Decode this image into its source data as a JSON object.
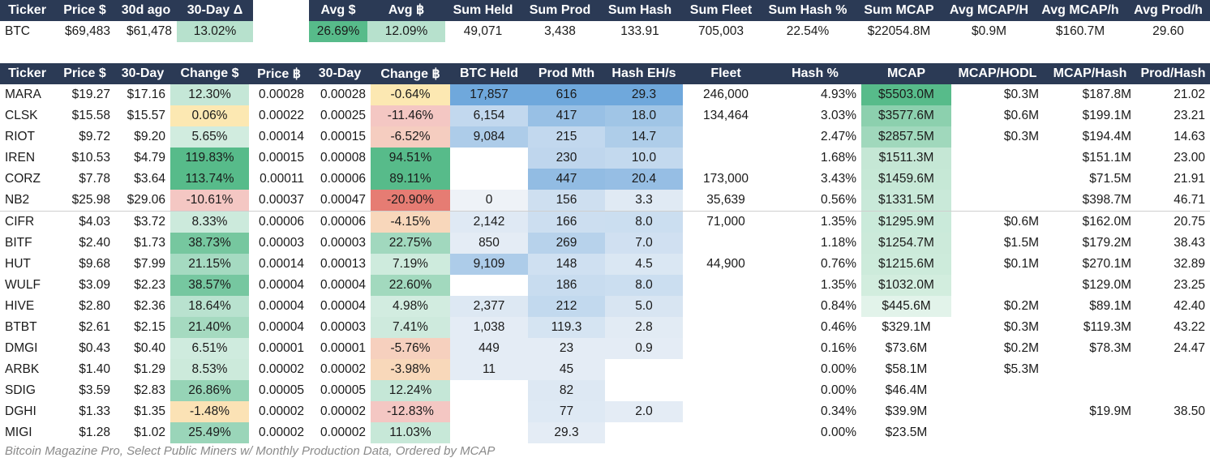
{
  "top": {
    "headers": [
      "Ticker",
      "Price $",
      "30d ago",
      "30-Day Δ"
    ],
    "values": [
      "BTC",
      "$69,483",
      "$61,478",
      "13.02%"
    ],
    "summary_headers": [
      "Avg $",
      "Avg ฿",
      "Sum Held",
      "Sum Prod",
      "Sum Hash",
      "Sum Fleet",
      "Sum Hash %",
      "Sum MCAP",
      "Avg MCAP/H",
      "Avg MCAP/h",
      "Avg Prod/h"
    ],
    "summary_values": [
      "26.69%",
      "12.09%",
      "49,071",
      "3,438",
      "133.91",
      "705,003",
      "22.54%",
      "$22054.8M",
      "$0.9M",
      "$160.7M",
      "29.60"
    ]
  },
  "table": {
    "headers": [
      "Ticker",
      "Price $",
      "30-Day",
      "Change $",
      "Price ฿",
      "30-Day",
      "Change ฿",
      "BTC Held",
      "Prod Mth",
      "Hash EH/s",
      "Fleet",
      "Hash %",
      "MCAP",
      "MCAP/HODL",
      "MCAP/Hash",
      "Prod/Hash"
    ],
    "rows": [
      [
        "MARA",
        "$19.27",
        "$17.16",
        "12.30%",
        "0.00028",
        "0.00028",
        "-0.64%",
        "17,857",
        "616",
        "29.3",
        "246,000",
        "4.93%",
        "$5503.0M",
        "$0.3M",
        "$187.8M",
        "21.02"
      ],
      [
        "CLSK",
        "$15.58",
        "$15.57",
        "0.06%",
        "0.00022",
        "0.00025",
        "-11.46%",
        "6,154",
        "417",
        "18.0",
        "134,464",
        "3.03%",
        "$3577.6M",
        "$0.6M",
        "$199.1M",
        "23.21"
      ],
      [
        "RIOT",
        "$9.72",
        "$9.20",
        "5.65%",
        "0.00014",
        "0.00015",
        "-6.52%",
        "9,084",
        "215",
        "14.7",
        "",
        "2.47%",
        "$2857.5M",
        "$0.3M",
        "$194.4M",
        "14.63"
      ],
      [
        "IREN",
        "$10.53",
        "$4.79",
        "119.83%",
        "0.00015",
        "0.00008",
        "94.51%",
        "",
        "230",
        "10.0",
        "",
        "1.68%",
        "$1511.3M",
        "",
        "$151.1M",
        "23.00"
      ],
      [
        "CORZ",
        "$7.78",
        "$3.64",
        "113.74%",
        "0.00011",
        "0.00006",
        "89.11%",
        "",
        "447",
        "20.4",
        "173,000",
        "3.43%",
        "$1459.6M",
        "",
        "$71.5M",
        "21.91"
      ],
      [
        "NB2",
        "$25.98",
        "$29.06",
        "-10.61%",
        "0.00037",
        "0.00047",
        "-20.90%",
        "0",
        "156",
        "3.3",
        "35,639",
        "0.56%",
        "$1331.5M",
        "",
        "$398.7M",
        "46.71"
      ],
      [
        "CIFR",
        "$4.03",
        "$3.72",
        "8.33%",
        "0.00006",
        "0.00006",
        "-4.15%",
        "2,142",
        "166",
        "8.0",
        "71,000",
        "1.35%",
        "$1295.9M",
        "$0.6M",
        "$162.0M",
        "20.75"
      ],
      [
        "BITF",
        "$2.40",
        "$1.73",
        "38.73%",
        "0.00003",
        "0.00003",
        "22.75%",
        "850",
        "269",
        "7.0",
        "",
        "1.18%",
        "$1254.7M",
        "$1.5M",
        "$179.2M",
        "38.43"
      ],
      [
        "HUT",
        "$9.68",
        "$7.99",
        "21.15%",
        "0.00014",
        "0.00013",
        "7.19%",
        "9,109",
        "148",
        "4.5",
        "44,900",
        "0.76%",
        "$1215.6M",
        "$0.1M",
        "$270.1M",
        "32.89"
      ],
      [
        "WULF",
        "$3.09",
        "$2.23",
        "38.57%",
        "0.00004",
        "0.00004",
        "22.60%",
        "",
        "186",
        "8.0",
        "",
        "1.35%",
        "$1032.0M",
        "",
        "$129.0M",
        "23.25"
      ],
      [
        "HIVE",
        "$2.80",
        "$2.36",
        "18.64%",
        "0.00004",
        "0.00004",
        "4.98%",
        "2,377",
        "212",
        "5.0",
        "",
        "0.84%",
        "$445.6M",
        "$0.2M",
        "$89.1M",
        "42.40"
      ],
      [
        "BTBT",
        "$2.61",
        "$2.15",
        "21.40%",
        "0.00004",
        "0.00003",
        "7.41%",
        "1,038",
        "119.3",
        "2.8",
        "",
        "0.46%",
        "$329.1M",
        "$0.3M",
        "$119.3M",
        "43.22"
      ],
      [
        "DMGI",
        "$0.43",
        "$0.40",
        "6.51%",
        "0.00001",
        "0.00001",
        "-5.76%",
        "449",
        "23",
        "0.9",
        "",
        "0.16%",
        "$73.6M",
        "$0.2M",
        "$78.3M",
        "24.47"
      ],
      [
        "ARBK",
        "$1.40",
        "$1.29",
        "8.53%",
        "0.00002",
        "0.00002",
        "-3.98%",
        "11",
        "45",
        "",
        "",
        "0.00%",
        "$58.1M",
        "$5.3M",
        "",
        ""
      ],
      [
        "SDIG",
        "$3.59",
        "$2.83",
        "26.86%",
        "0.00005",
        "0.00005",
        "12.24%",
        "",
        "82",
        "",
        "",
        "0.00%",
        "$46.4M",
        "",
        "",
        ""
      ],
      [
        "DGHI",
        "$1.33",
        "$1.35",
        "-1.48%",
        "0.00002",
        "0.00002",
        "-12.83%",
        "",
        "77",
        "2.0",
        "",
        "0.34%",
        "$39.9M",
        "",
        "$19.9M",
        "38.50"
      ],
      [
        "MIGI",
        "$1.28",
        "$1.02",
        "25.49%",
        "0.00002",
        "0.00002",
        "11.03%",
        "",
        "29.3",
        "",
        "",
        "0.00%",
        "$23.5M",
        "",
        "",
        ""
      ]
    ]
  },
  "caption": "Bitcoin Magazine Pro, Select Public Miners w/ Monthly Production Data, Ordered by MCAP",
  "colors": {
    "header_bg": "#2b3a55",
    "positive_dark": "#57bb8a",
    "positive_light": "#b7e1cd",
    "negative_dark": "#e67c73",
    "negative_light": "#f4c7c3",
    "neutral_yellow": "#fce8b2",
    "blue_scale": "#6fa8dc"
  }
}
